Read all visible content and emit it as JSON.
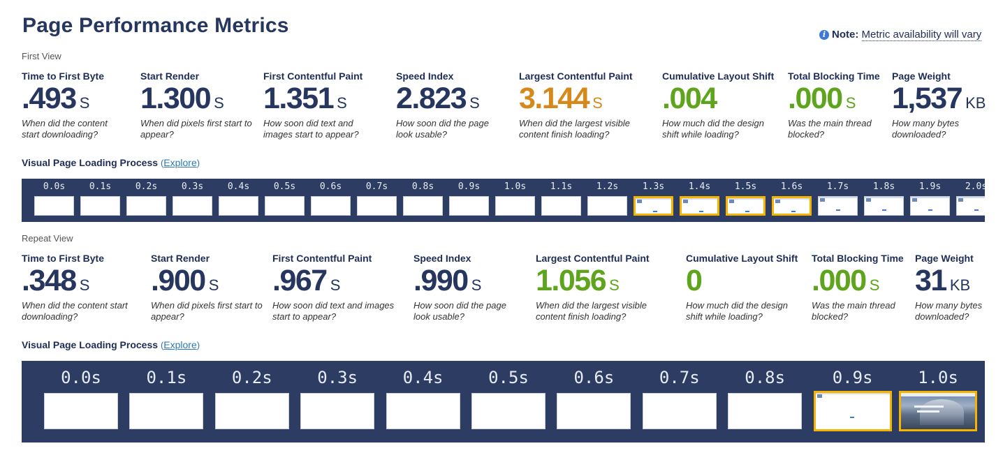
{
  "title": "Page Performance Metrics",
  "note": {
    "label": "Note:",
    "text": "Metric availability will vary"
  },
  "colors": {
    "navy": "#26365e",
    "orange": "#d6891b",
    "green": "#5ea41c",
    "strip": "#2c3c63",
    "highlight": "#f4b400"
  },
  "first_view": {
    "label": "First View",
    "metrics": [
      {
        "label": "Time to First Byte",
        "value": ".493",
        "unit": "S",
        "color": "navy",
        "desc": "When did the content start downloading?"
      },
      {
        "label": "Start Render",
        "value": "1.300",
        "unit": "S",
        "color": "navy",
        "desc": "When did pixels first start to appear?"
      },
      {
        "label": "First Contentful Paint",
        "value": "1.351",
        "unit": "S",
        "color": "navy",
        "desc": "How soon did text and images start to appear?"
      },
      {
        "label": "Speed Index",
        "value": "2.823",
        "unit": "S",
        "color": "navy",
        "desc": "How soon did the page look usable?"
      },
      {
        "label": "Largest Contentful Paint",
        "value": "3.144",
        "unit": "S",
        "color": "orange",
        "desc": "When did the largest visible content finish loading?"
      },
      {
        "label": "Cumulative Layout Shift",
        "value": ".004",
        "unit": "",
        "color": "green",
        "desc": "How much did the design shift while loading?"
      },
      {
        "label": "Total Blocking Time",
        "value": ".000",
        "unit": "S",
        "color": "green",
        "desc": "Was the main thread blocked?"
      },
      {
        "label": "Page Weight",
        "value": "1,537",
        "unit": "KB",
        "color": "navy",
        "desc": "How many bytes downloaded?"
      }
    ],
    "filmstrip": {
      "label": "Visual Page Loading Process",
      "explore": "Explore",
      "frames": [
        {
          "time": "0.0s",
          "state": "blank",
          "changed": false
        },
        {
          "time": "0.1s",
          "state": "blank",
          "changed": false
        },
        {
          "time": "0.2s",
          "state": "blank",
          "changed": false
        },
        {
          "time": "0.3s",
          "state": "blank",
          "changed": false
        },
        {
          "time": "0.4s",
          "state": "blank",
          "changed": false
        },
        {
          "time": "0.5s",
          "state": "blank",
          "changed": false
        },
        {
          "time": "0.6s",
          "state": "blank",
          "changed": false
        },
        {
          "time": "0.7s",
          "state": "blank",
          "changed": false
        },
        {
          "time": "0.8s",
          "state": "blank",
          "changed": false
        },
        {
          "time": "0.9s",
          "state": "blank",
          "changed": false
        },
        {
          "time": "1.0s",
          "state": "blank",
          "changed": false
        },
        {
          "time": "1.1s",
          "state": "blank",
          "changed": false
        },
        {
          "time": "1.2s",
          "state": "blank",
          "changed": false
        },
        {
          "time": "1.3s",
          "state": "partial",
          "changed": true
        },
        {
          "time": "1.4s",
          "state": "partial",
          "changed": true
        },
        {
          "time": "1.5s",
          "state": "partial",
          "changed": true
        },
        {
          "time": "1.6s",
          "state": "partial",
          "changed": true
        },
        {
          "time": "1.7s",
          "state": "partial",
          "changed": false
        },
        {
          "time": "1.8s",
          "state": "partial",
          "changed": false
        },
        {
          "time": "1.9s",
          "state": "partial",
          "changed": false
        },
        {
          "time": "2.0s",
          "state": "partial",
          "changed": false
        }
      ]
    }
  },
  "repeat_view": {
    "label": "Repeat View",
    "metrics": [
      {
        "label": "Time to First Byte",
        "value": ".348",
        "unit": "S",
        "color": "navy",
        "desc": "When did the content start downloading?"
      },
      {
        "label": "Start Render",
        "value": ".900",
        "unit": "S",
        "color": "navy",
        "desc": "When did pixels first start to appear?"
      },
      {
        "label": "First Contentful Paint",
        "value": ".967",
        "unit": "S",
        "color": "navy",
        "desc": "How soon did text and images start to appear?"
      },
      {
        "label": "Speed Index",
        "value": ".990",
        "unit": "S",
        "color": "navy",
        "desc": "How soon did the page look usable?"
      },
      {
        "label": "Largest Contentful Paint",
        "value": "1.056",
        "unit": "S",
        "color": "green",
        "desc": "When did the largest visible content finish loading?"
      },
      {
        "label": "Cumulative Layout Shift",
        "value": "0",
        "unit": "",
        "color": "green",
        "desc": "How much did the design shift while loading?"
      },
      {
        "label": "Total Blocking Time",
        "value": ".000",
        "unit": "S",
        "color": "green",
        "desc": "Was the main thread blocked?"
      },
      {
        "label": "Page Weight",
        "value": "31",
        "unit": "KB",
        "color": "navy",
        "desc": "How many bytes downloaded?"
      }
    ],
    "filmstrip": {
      "label": "Visual Page Loading Process",
      "explore": "Explore",
      "frames": [
        {
          "time": "0.0s",
          "state": "blank",
          "changed": false
        },
        {
          "time": "0.1s",
          "state": "blank",
          "changed": false
        },
        {
          "time": "0.2s",
          "state": "blank",
          "changed": false
        },
        {
          "time": "0.3s",
          "state": "blank",
          "changed": false
        },
        {
          "time": "0.4s",
          "state": "blank",
          "changed": false
        },
        {
          "time": "0.5s",
          "state": "blank",
          "changed": false
        },
        {
          "time": "0.6s",
          "state": "blank",
          "changed": false
        },
        {
          "time": "0.7s",
          "state": "blank",
          "changed": false
        },
        {
          "time": "0.8s",
          "state": "blank",
          "changed": false
        },
        {
          "time": "0.9s",
          "state": "partial",
          "changed": true
        },
        {
          "time": "1.0s",
          "state": "full",
          "changed": true
        }
      ]
    }
  }
}
